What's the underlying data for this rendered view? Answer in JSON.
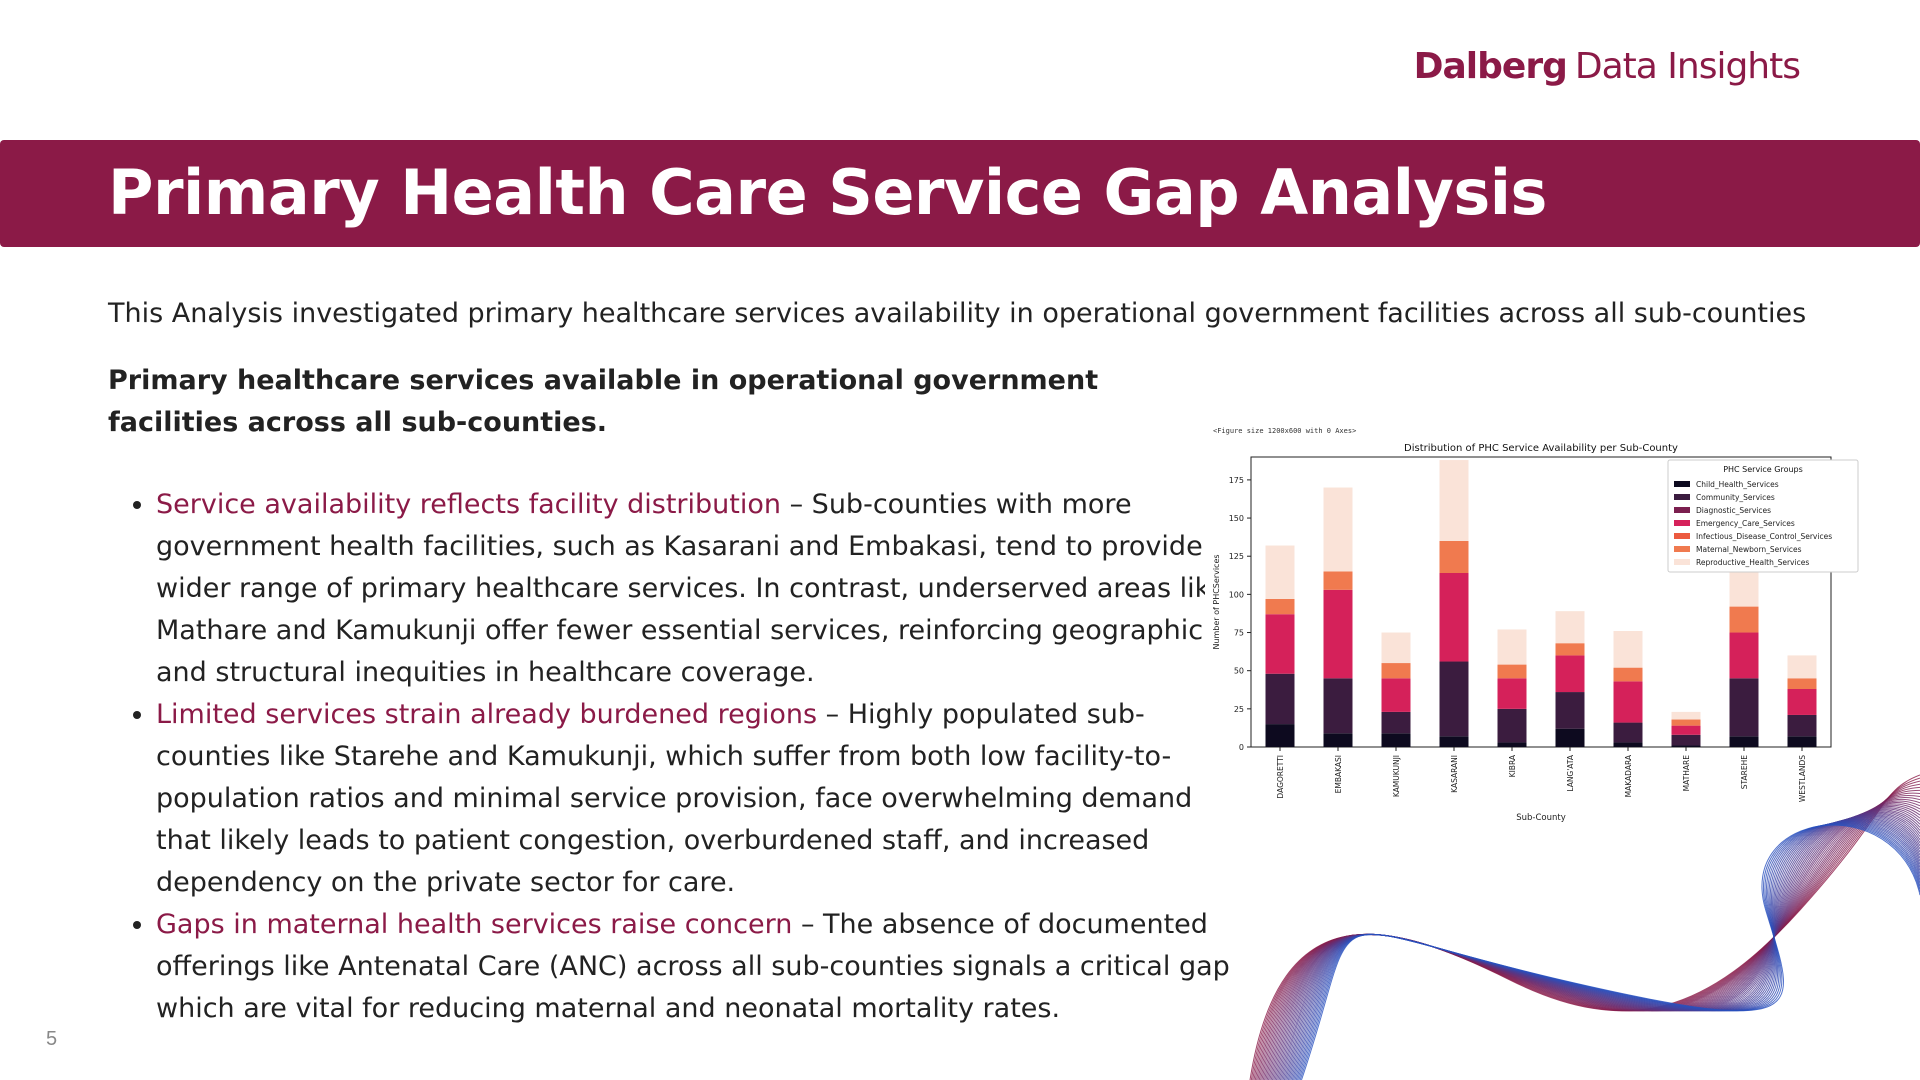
{
  "header": {
    "logo_brand": "Dalberg",
    "logo_rest": "Data Insights",
    "title": "Primary Health Care Service Gap Analysis",
    "brand_color": "#8b1a47"
  },
  "intro": "This Analysis investigated primary healthcare services availability in operational government facilities across all sub-counties",
  "subhead": "Primary healthcare services available in operational government facilities across all sub-counties.",
  "bullets": [
    {
      "highlight": "Service availability reflects facility distribution",
      "text": " – Sub-counties with more government health facilities, such as Kasarani and Embakasi, tend to provide a wider range of primary healthcare services. In contrast, underserved areas like Mathare and Kamukunji offer fewer essential services, reinforcing geographic and structural inequities in healthcare coverage."
    },
    {
      "highlight": "Limited services strain already burdened regions",
      "text": " – Highly populated sub-counties like Starehe and Kamukunji, which suffer from both low facility-to-population ratios and minimal service provision, face overwhelming demand that likely leads to patient congestion, overburdened staff, and increased dependency on the private sector for care."
    },
    {
      "highlight": "Gaps in maternal health services raise concern",
      "text": " – The absence of documented offerings like Antenatal Care (ANC) across all sub-counties signals a critical gap which are vital for reducing maternal and neonatal mortality rates."
    }
  ],
  "page_number": "5",
  "chart_data": {
    "type": "bar",
    "stacked": true,
    "figure_note": "<Figure size 1200x600 with 0 Axes>",
    "title": "Distribution of PHC Service Availability per Sub-County",
    "xlabel": "Sub-County",
    "ylabel": "Number of PHCServices",
    "ylim": [
      0,
      190
    ],
    "yticks": [
      0,
      25,
      50,
      75,
      100,
      125,
      150,
      175
    ],
    "legend_title": "PHC Service Groups",
    "legend_position": "top-right",
    "categories": [
      "DAGORETTI",
      "EMBAKASI",
      "KAMUKUNJI",
      "KASARANI",
      "KIBRA",
      "LANG'ATA",
      "MAKADARA",
      "MATHARE",
      "STAREHE",
      "WESTLANDS"
    ],
    "series": [
      {
        "name": "Child_Health_Services",
        "color": "#0d0a1f",
        "values": [
          15,
          9,
          9,
          7,
          3,
          12,
          3,
          1,
          7,
          7
        ]
      },
      {
        "name": "Community_Services",
        "color": "#3b1c3f",
        "values": [
          33,
          36,
          14,
          49,
          22,
          24,
          13,
          7,
          38,
          14
        ]
      },
      {
        "name": "Diagnostic_Services",
        "color": "#7b1f4f",
        "values": [
          0,
          0,
          0,
          0,
          0,
          0,
          0,
          0,
          0,
          0
        ]
      },
      {
        "name": "Emergency_Care_Services",
        "color": "#d5215a",
        "values": [
          39,
          58,
          22,
          58,
          20,
          24,
          27,
          6,
          30,
          17
        ]
      },
      {
        "name": "Infectious_Disease_Control_Services",
        "color": "#ec5a3f",
        "values": [
          0,
          0,
          0,
          0,
          0,
          0,
          0,
          0,
          0,
          0
        ]
      },
      {
        "name": "Maternal_Newborn_Services",
        "color": "#f07a4f",
        "values": [
          10,
          12,
          10,
          21,
          9,
          8,
          9,
          4,
          17,
          7
        ]
      },
      {
        "name": "Reproductive_Health_Services",
        "color": "#fae3d8",
        "values": [
          35,
          55,
          20,
          53,
          23,
          21,
          24,
          5,
          24,
          15
        ]
      }
    ]
  }
}
